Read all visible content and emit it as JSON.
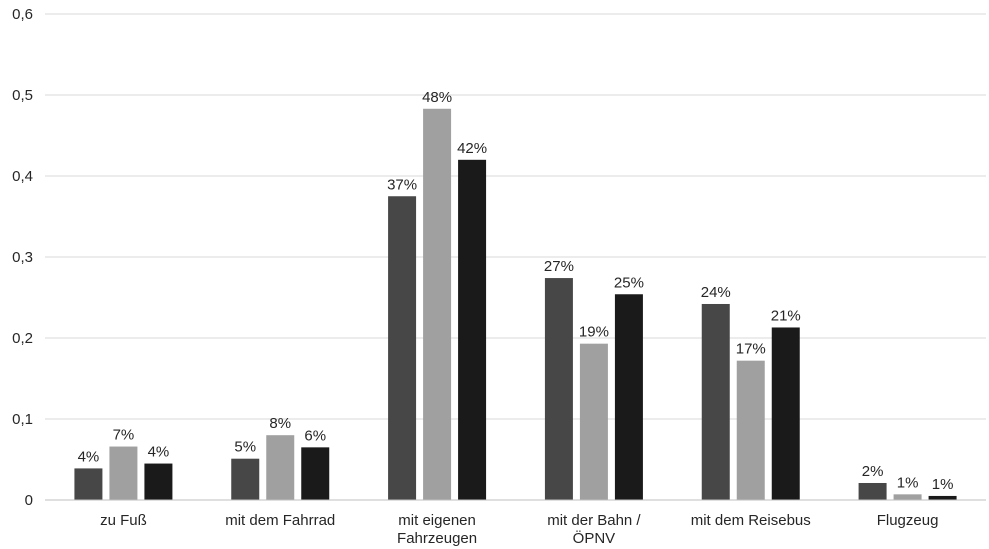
{
  "chart_data": {
    "type": "bar",
    "title": "",
    "xlabel": "",
    "ylabel": "",
    "ylim": [
      0,
      0.6
    ],
    "y_ticks": [
      "0",
      "0,1",
      "0,2",
      "0,3",
      "0,4",
      "0,5",
      "0,6"
    ],
    "y_tick_values": [
      0,
      0.1,
      0.2,
      0.3,
      0.4,
      0.5,
      0.6
    ],
    "grid": true,
    "legend": "none",
    "categories": [
      [
        "zu Fuß"
      ],
      [
        "mit dem Fahrrad"
      ],
      [
        "mit eigenen",
        "Fahrzeugen"
      ],
      [
        "mit der Bahn /",
        "ÖPNV"
      ],
      [
        "mit dem Reisebus"
      ],
      [
        "Flugzeug"
      ]
    ],
    "series": [
      {
        "color": "#474747",
        "values": [
          0.039,
          0.051,
          0.375,
          0.274,
          0.242,
          0.021
        ],
        "labels": [
          "4%",
          "5%",
          "37%",
          "27%",
          "24%",
          "2%"
        ]
      },
      {
        "color": "#a0a0a0",
        "values": [
          0.066,
          0.08,
          0.483,
          0.193,
          0.172,
          0.007
        ],
        "labels": [
          "7%",
          "8%",
          "48%",
          "19%",
          "17%",
          "1%"
        ]
      },
      {
        "color": "#1a1a1a",
        "values": [
          0.045,
          0.065,
          0.42,
          0.254,
          0.213,
          0.005
        ],
        "labels": [
          "4%",
          "6%",
          "42%",
          "25%",
          "21%",
          "1%"
        ]
      }
    ],
    "colors": {
      "gridline": "#d9d9d9",
      "axis": "#bfbfbf",
      "text": "#262626"
    }
  }
}
